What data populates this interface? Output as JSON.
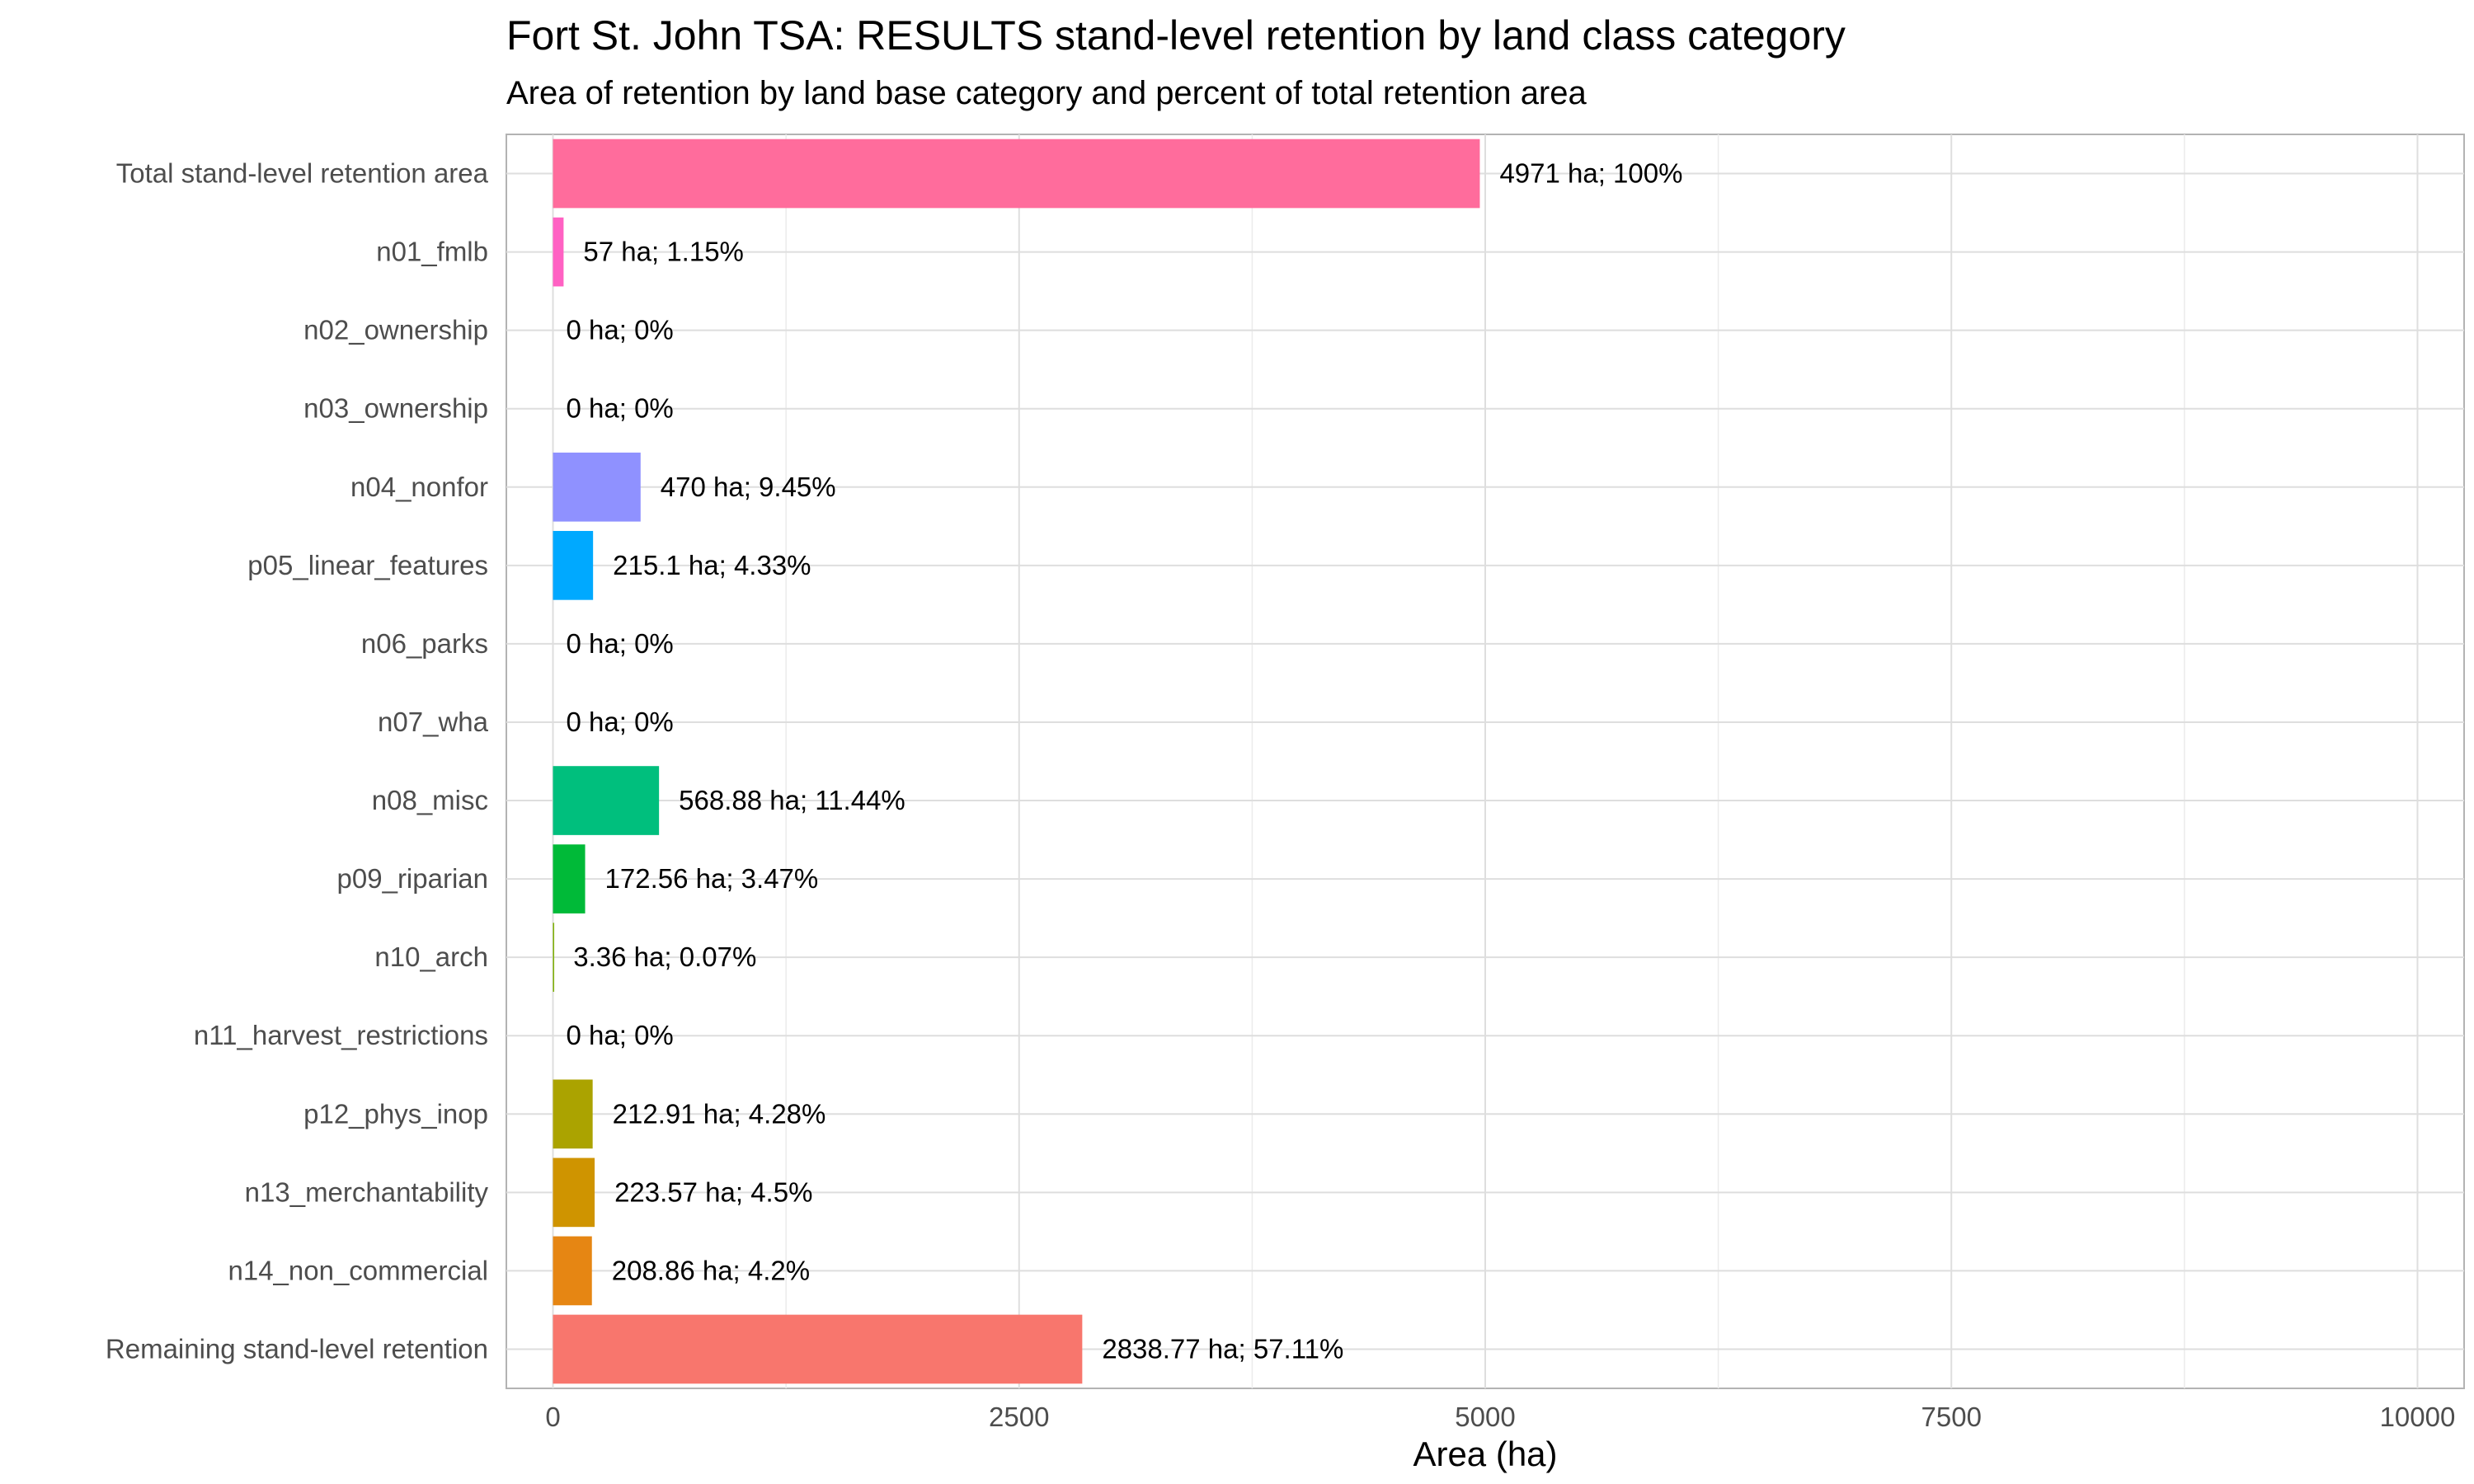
{
  "chart_data": {
    "type": "bar",
    "orientation": "horizontal",
    "title": "Fort St. John TSA: RESULTS stand-level retention by land class category",
    "subtitle": "Area of retention by land base category and percent of total retention area",
    "xlabel": "Area (ha)",
    "ylabel": "",
    "xlim": [
      -250,
      10250
    ],
    "xticks": [
      0,
      2500,
      5000,
      7500,
      10000
    ],
    "grid": true,
    "legend": "none",
    "categories": [
      "Total stand-level retention area",
      "n01_fmlb",
      "n02_ownership",
      "n03_ownership",
      "n04_nonfor",
      "p05_linear_features",
      "n06_parks",
      "n07_wha",
      "n08_misc",
      "p09_riparian",
      "n10_arch",
      "n11_harvest_restrictions",
      "p12_phys_inop",
      "n13_merchantability",
      "n14_non_commercial",
      "Remaining stand-level retention"
    ],
    "values": [
      4971,
      57,
      0,
      0,
      470,
      215.1,
      0,
      0,
      568.88,
      172.56,
      3.36,
      0,
      212.91,
      223.57,
      208.86,
      2838.77
    ],
    "labels": [
      "4971 ha; 100%",
      "57 ha; 1.15%",
      "0 ha; 0%",
      "0 ha; 0%",
      "470 ha; 9.45%",
      "215.1 ha; 4.33%",
      "0 ha; 0%",
      "0 ha; 0%",
      "568.88 ha; 11.44%",
      "172.56 ha; 3.47%",
      "3.36 ha; 0.07%",
      "0 ha; 0%",
      "212.91 ha; 4.28%",
      "223.57 ha; 4.5%",
      "208.86 ha; 4.2%",
      "2838.77 ha; 57.11%"
    ],
    "colors": [
      "#FF6C9C",
      "#FF61C3",
      "#F564E3",
      "#DB72FB",
      "#8F91FF",
      "#00A9FF",
      "#00BCD8",
      "#00C1A7",
      "#00BF7D",
      "#00BA38",
      "#7CAE00",
      "#A3A500",
      "#ABA300",
      "#CF9400",
      "#E68613",
      "#F8766D"
    ]
  }
}
